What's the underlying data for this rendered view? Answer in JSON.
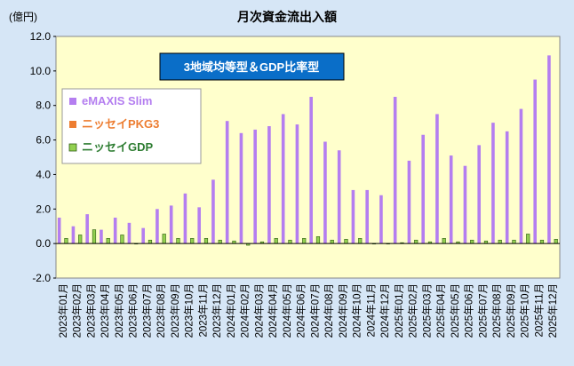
{
  "chart_data": {
    "type": "bar",
    "title": "月次資金流出入額",
    "ylabel": "(億円)",
    "ylim": [
      -2,
      12
    ],
    "yticks": [
      "-2.0",
      "0.0",
      "2.0",
      "4.0",
      "6.0",
      "8.0",
      "10.0",
      "12.0"
    ],
    "annotation": "3地域均等型＆GDP比率型",
    "legend_placement": "left",
    "grid": false,
    "categories": [
      "2023年01月",
      "2023年02月",
      "2023年03月",
      "2023年04月",
      "2023年05月",
      "2023年06月",
      "2023年07月",
      "2023年08月",
      "2023年09月",
      "2023年10月",
      "2023年11月",
      "2023年12月",
      "2024年01月",
      "2024年02月",
      "2024年03月",
      "2024年04月",
      "2024年05月",
      "2024年06月",
      "2024年07月",
      "2024年08月",
      "2024年09月",
      "2024年10月",
      "2024年11月",
      "2024年12月",
      "2025年01月",
      "2025年02月",
      "2025年03月",
      "2025年04月",
      "2025年05月",
      "2025年06月",
      "2025年07月",
      "2025年08月",
      "2025年09月",
      "2025年10月",
      "2025年11月",
      "2025年12月"
    ],
    "series": [
      {
        "name": "eMAXIS Slim",
        "color": "#b47ef0",
        "values": [
          1.5,
          1.0,
          1.7,
          0.8,
          1.5,
          1.2,
          0.9,
          2.0,
          2.2,
          2.9,
          2.1,
          3.7,
          7.1,
          6.4,
          6.6,
          6.8,
          7.5,
          6.9,
          8.5,
          5.9,
          5.4,
          3.1,
          3.1,
          2.8,
          8.5,
          4.8,
          6.3,
          7.5,
          5.1,
          4.5,
          5.7,
          7.0,
          6.5,
          7.8,
          9.5,
          10.9
        ]
      },
      {
        "name": "ニッセイPKG3",
        "color": "#ed7d31",
        "values": [
          0.02,
          0.02,
          0.02,
          0.02,
          0.02,
          0.02,
          0.02,
          0.02,
          0.02,
          0.02,
          0.02,
          0.02,
          0.02,
          0.02,
          0.02,
          0.02,
          0.02,
          0.02,
          0.02,
          0.02,
          0.02,
          0.02,
          0.02,
          0.02,
          0.02,
          0.02,
          0.02,
          0.02,
          0.02,
          0.02,
          0.02,
          0.02,
          0.02,
          0.02,
          0.02,
          0.02
        ]
      },
      {
        "name": "ニッセイGDP",
        "color": "#92d050",
        "values": [
          0.3,
          0.5,
          0.8,
          0.3,
          0.5,
          0.0,
          0.2,
          0.55,
          0.3,
          0.3,
          0.3,
          0.2,
          0.15,
          -0.1,
          0.1,
          0.3,
          0.2,
          0.3,
          0.4,
          0.2,
          0.25,
          0.3,
          0.0,
          0.0,
          0.05,
          0.2,
          0.1,
          0.3,
          0.1,
          0.2,
          0.15,
          0.2,
          0.2,
          0.55,
          0.2,
          0.25
        ]
      }
    ]
  }
}
